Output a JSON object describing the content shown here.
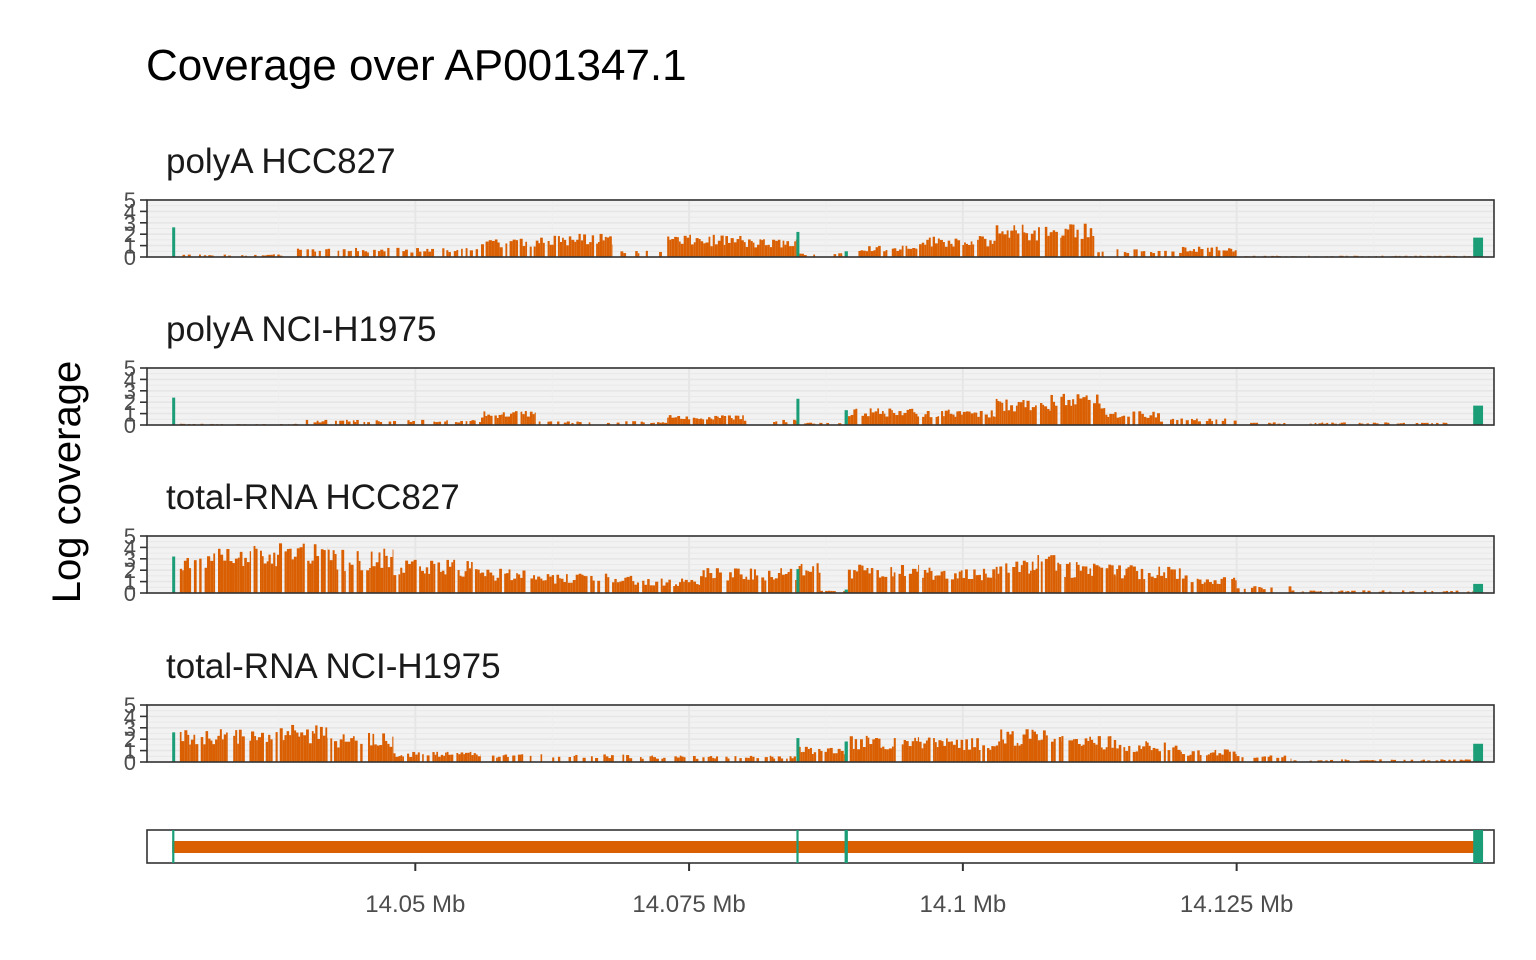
{
  "chart_data": {
    "type": "area",
    "title": "Coverage over AP001347.1",
    "ylabel": "Log coverage",
    "xlabel": "",
    "unit": "Mb",
    "xlim": [
      14.0255,
      14.1485
    ],
    "ylim": [
      0,
      5
    ],
    "yticks": [
      "0",
      "1",
      "2",
      "3",
      "4",
      "5"
    ],
    "xticks": [
      {
        "value": 14.05,
        "label": "14.05 Mb"
      },
      {
        "value": 14.075,
        "label": "14.075 Mb"
      },
      {
        "value": 14.1,
        "label": "14.1 Mb"
      },
      {
        "value": 14.125,
        "label": "14.125 Mb"
      }
    ],
    "colors": {
      "intron": "#D95F02",
      "exon": "#1B9E77",
      "grid": "#EBEBEB",
      "panel_bg": "#F2F2F2",
      "border": "#333333"
    },
    "exons": [
      {
        "start": 14.0278,
        "end": 14.028
      },
      {
        "start": 14.0848,
        "end": 14.085
      },
      {
        "start": 14.0892,
        "end": 14.0895
      },
      {
        "start": 14.1466,
        "end": 14.1475
      }
    ],
    "panels": [
      {
        "name": "polyA HCC827",
        "exon_levels": [
          2.6,
          2.2,
          0.5,
          1.7
        ],
        "intron_segments": [
          {
            "x": [
              14.0285,
              14.038
            ],
            "y": 0.2
          },
          {
            "x": [
              14.038,
              14.056
            ],
            "y": 0.7
          },
          {
            "x": [
              14.056,
              14.061
            ],
            "y": 1.5
          },
          {
            "x": [
              14.061,
              14.068
            ],
            "y": 1.8
          },
          {
            "x": [
              14.068,
              14.073
            ],
            "y": 0.6
          },
          {
            "x": [
              14.073,
              14.08
            ],
            "y": 1.7
          },
          {
            "x": [
              14.08,
              14.0848
            ],
            "y": 1.4
          },
          {
            "x": [
              14.085,
              14.089
            ],
            "y": 0.3
          },
          {
            "x": [
              14.0895,
              14.096
            ],
            "y": 0.9
          },
          {
            "x": [
              14.096,
              14.103
            ],
            "y": 1.6
          },
          {
            "x": [
              14.103,
              14.109
            ],
            "y": 2.5
          },
          {
            "x": [
              14.109,
              14.112
            ],
            "y": 2.8
          },
          {
            "x": [
              14.112,
              14.12
            ],
            "y": 0.6
          },
          {
            "x": [
              14.12,
              14.125
            ],
            "y": 0.8
          },
          {
            "x": [
              14.125,
              14.1466
            ],
            "y": 0.1
          }
        ]
      },
      {
        "name": "polyA NCI-H1975",
        "exon_levels": [
          2.4,
          2.3,
          1.3,
          1.7
        ],
        "intron_segments": [
          {
            "x": [
              14.0285,
              14.04
            ],
            "y": 0.1
          },
          {
            "x": [
              14.04,
              14.056
            ],
            "y": 0.4
          },
          {
            "x": [
              14.056,
              14.061
            ],
            "y": 1.1
          },
          {
            "x": [
              14.061,
              14.073
            ],
            "y": 0.3
          },
          {
            "x": [
              14.073,
              14.08
            ],
            "y": 0.8
          },
          {
            "x": [
              14.08,
              14.0848
            ],
            "y": 0.4
          },
          {
            "x": [
              14.085,
              14.0892
            ],
            "y": 0.2
          },
          {
            "x": [
              14.0895,
              14.096
            ],
            "y": 1.3
          },
          {
            "x": [
              14.096,
              14.103
            ],
            "y": 1.2
          },
          {
            "x": [
              14.103,
              14.108
            ],
            "y": 2.0
          },
          {
            "x": [
              14.108,
              14.113
            ],
            "y": 2.4
          },
          {
            "x": [
              14.113,
              14.118
            ],
            "y": 1.1
          },
          {
            "x": [
              14.118,
              14.125
            ],
            "y": 0.5
          },
          {
            "x": [
              14.125,
              14.1466
            ],
            "y": 0.2
          }
        ]
      },
      {
        "name": "total-RNA HCC827",
        "exon_levels": [
          3.2,
          2.1,
          0.3,
          0.8
        ],
        "intron_segments": [
          {
            "x": [
              14.0285,
              14.035
            ],
            "y": 3.6
          },
          {
            "x": [
              14.035,
              14.042
            ],
            "y": 3.9
          },
          {
            "x": [
              14.042,
              14.048
            ],
            "y": 3.4
          },
          {
            "x": [
              14.048,
              14.056
            ],
            "y": 2.6
          },
          {
            "x": [
              14.056,
              14.062
            ],
            "y": 1.9
          },
          {
            "x": [
              14.062,
              14.07
            ],
            "y": 1.5
          },
          {
            "x": [
              14.07,
              14.076
            ],
            "y": 1.1
          },
          {
            "x": [
              14.076,
              14.0848
            ],
            "y": 1.9
          },
          {
            "x": [
              14.085,
              14.087
            ],
            "y": 2.3
          },
          {
            "x": [
              14.087,
              14.0895
            ],
            "y": 0.2
          },
          {
            "x": [
              14.0895,
              14.096
            ],
            "y": 2.2
          },
          {
            "x": [
              14.096,
              14.103
            ],
            "y": 2.0
          },
          {
            "x": [
              14.103,
              14.109
            ],
            "y": 2.9
          },
          {
            "x": [
              14.109,
              14.114
            ],
            "y": 2.4
          },
          {
            "x": [
              14.114,
              14.12
            ],
            "y": 2.2
          },
          {
            "x": [
              14.12,
              14.125
            ],
            "y": 1.4
          },
          {
            "x": [
              14.125,
              14.13
            ],
            "y": 0.6
          },
          {
            "x": [
              14.13,
              14.1466
            ],
            "y": 0.2
          }
        ]
      },
      {
        "name": "total-RNA NCI-H1975",
        "exon_levels": [
          2.6,
          2.1,
          1.8,
          1.6
        ],
        "intron_segments": [
          {
            "x": [
              14.0285,
              14.035
            ],
            "y": 2.6
          },
          {
            "x": [
              14.035,
              14.042
            ],
            "y": 2.9
          },
          {
            "x": [
              14.042,
              14.048
            ],
            "y": 2.3
          },
          {
            "x": [
              14.048,
              14.056
            ],
            "y": 0.8
          },
          {
            "x": [
              14.056,
              14.07
            ],
            "y": 0.6
          },
          {
            "x": [
              14.07,
              14.0848
            ],
            "y": 0.5
          },
          {
            "x": [
              14.085,
              14.0892
            ],
            "y": 1.2
          },
          {
            "x": [
              14.0895,
              14.096
            ],
            "y": 2.0
          },
          {
            "x": [
              14.096,
              14.103
            ],
            "y": 1.9
          },
          {
            "x": [
              14.103,
              14.109
            ],
            "y": 2.5
          },
          {
            "x": [
              14.109,
              14.114
            ],
            "y": 2.0
          },
          {
            "x": [
              14.114,
              14.12
            ],
            "y": 1.6
          },
          {
            "x": [
              14.12,
              14.125
            ],
            "y": 1.0
          },
          {
            "x": [
              14.125,
              14.13
            ],
            "y": 0.5
          },
          {
            "x": [
              14.13,
              14.1466
            ],
            "y": 0.2
          }
        ]
      }
    ]
  }
}
